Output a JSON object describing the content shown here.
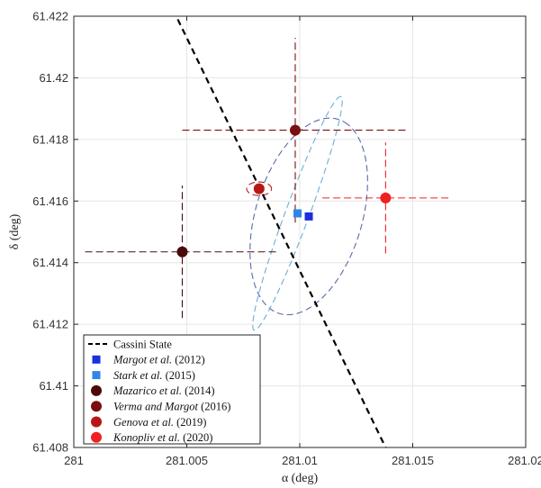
{
  "chart_data": {
    "type": "scatter",
    "title": "",
    "xlabel": "α (deg)",
    "ylabel": "δ (deg)",
    "xlim": [
      281,
      281.02
    ],
    "ylim": [
      61.408,
      61.422
    ],
    "grid": true,
    "x_ticks": [
      "281",
      "281.005",
      "281.01",
      "281.015",
      "281.02"
    ],
    "y_ticks": [
      "61.408",
      "61.41",
      "61.412",
      "61.414",
      "61.416",
      "61.418",
      "61.42",
      "61.422"
    ],
    "legend_position": "bottom-left",
    "cassini_state": {
      "name": "Cassini State",
      "color": "#000000",
      "points": [
        [
          281.0046,
          61.4219
        ],
        [
          281.0138,
          61.408
        ]
      ]
    },
    "points": [
      {
        "name_parts": [
          {
            "text": "Margot et al.",
            "italic": true
          },
          {
            "text": " (2012)",
            "italic": false
          }
        ],
        "marker": "square",
        "color": "#1a2fe0",
        "x": 281.0104,
        "y": 61.4155
      },
      {
        "name_parts": [
          {
            "text": "Stark et al.",
            "italic": true
          },
          {
            "text": " (2015)",
            "italic": false
          }
        ],
        "marker": "square",
        "color": "#2f86e6",
        "x": 281.0099,
        "y": 61.4156
      },
      {
        "name_parts": [
          {
            "text": "Mazarico et al.",
            "italic": true
          },
          {
            "text": " (2014)",
            "italic": false
          }
        ],
        "marker": "circle",
        "color": "#4a0a0a",
        "x": 281.0048,
        "y": 61.41435,
        "xerr": 0.0043,
        "yerr": 0.00215
      },
      {
        "name_parts": [
          {
            "text": "Verma and Margot",
            "italic": true
          },
          {
            "text": " (2016)",
            "italic": false
          }
        ],
        "marker": "circle",
        "color": "#7a0f0f",
        "x": 281.0098,
        "y": 61.4183,
        "xerr": 0.005,
        "yerr": 0.003
      },
      {
        "name_parts": [
          {
            "text": "Genova et al.",
            "italic": true
          },
          {
            "text": " (2019)",
            "italic": false
          }
        ],
        "marker": "circle",
        "color": "#b81616",
        "x": 281.0082,
        "y": 61.4164
      },
      {
        "name_parts": [
          {
            "text": "Konopliv et al.",
            "italic": true
          },
          {
            "text": " (2020)",
            "italic": false
          }
        ],
        "marker": "circle",
        "color": "#ee2222",
        "x": 281.0138,
        "y": 61.4161,
        "xerr": 0.0028,
        "yerr": 0.0018
      }
    ],
    "ellipses": [
      {
        "of": "Margot et al. (2012)",
        "color": "#5a6aa8",
        "cx": 281.0104,
        "cy": 61.4155,
        "a": 0.00345,
        "b": 0.00225,
        "angle_deg": 60
      },
      {
        "of": "Stark et al. (2015)",
        "color": "#6aaed8",
        "cx": 281.0099,
        "cy": 61.4156,
        "a": 0.00425,
        "b": 0.0005,
        "angle_deg": 63
      },
      {
        "of": "Genova et al. (2019)",
        "color": "#b81616",
        "cx": 281.0082,
        "cy": 61.4164,
        "a": 0.00055,
        "b": 0.00022,
        "angle_deg": 0
      }
    ]
  }
}
